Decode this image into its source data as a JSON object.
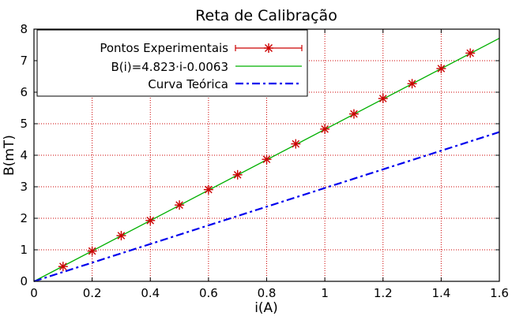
{
  "chart_data": {
    "type": "scatter",
    "title": "Reta de Calibração",
    "xlabel": "i(A)",
    "ylabel": "B(mT)",
    "xlim": [
      0,
      1.6
    ],
    "ylim": [
      0,
      8
    ],
    "xticks": [
      "0",
      "0.2",
      "0.4",
      "0.6",
      "0.8",
      "1",
      "1.2",
      "1.4",
      "1.6"
    ],
    "yticks": [
      "0",
      "1",
      "2",
      "3",
      "4",
      "5",
      "6",
      "7",
      "8"
    ],
    "grid": true,
    "legend_position": "top-left",
    "series": [
      {
        "name": "Pontos Experimentais",
        "type": "scatter",
        "marker": "asterisk",
        "color": "#cc0000",
        "x": [
          0.1,
          0.2,
          0.3,
          0.4,
          0.5,
          0.6,
          0.7,
          0.8,
          0.9,
          1.0,
          1.1,
          1.2,
          1.3,
          1.4,
          1.5
        ],
        "y": [
          0.47,
          0.96,
          1.45,
          1.93,
          2.42,
          2.91,
          3.38,
          3.87,
          4.36,
          4.83,
          5.31,
          5.8,
          6.27,
          6.75,
          7.24
        ]
      },
      {
        "name": "B(i)=4.823·i-0.0063",
        "type": "line",
        "style": "solid",
        "color": "#00b000",
        "slope": 4.823,
        "intercept": -0.0063,
        "x_range": [
          0,
          1.6
        ]
      },
      {
        "name": "Curva Teórica",
        "type": "line",
        "style": "dash-dot",
        "color": "#0000ee",
        "slope": 2.96,
        "intercept": 0,
        "x_range": [
          0,
          1.6
        ]
      }
    ]
  },
  "colors": {
    "grid": "#cc0000",
    "axes": "#000000",
    "background": "#ffffff"
  }
}
